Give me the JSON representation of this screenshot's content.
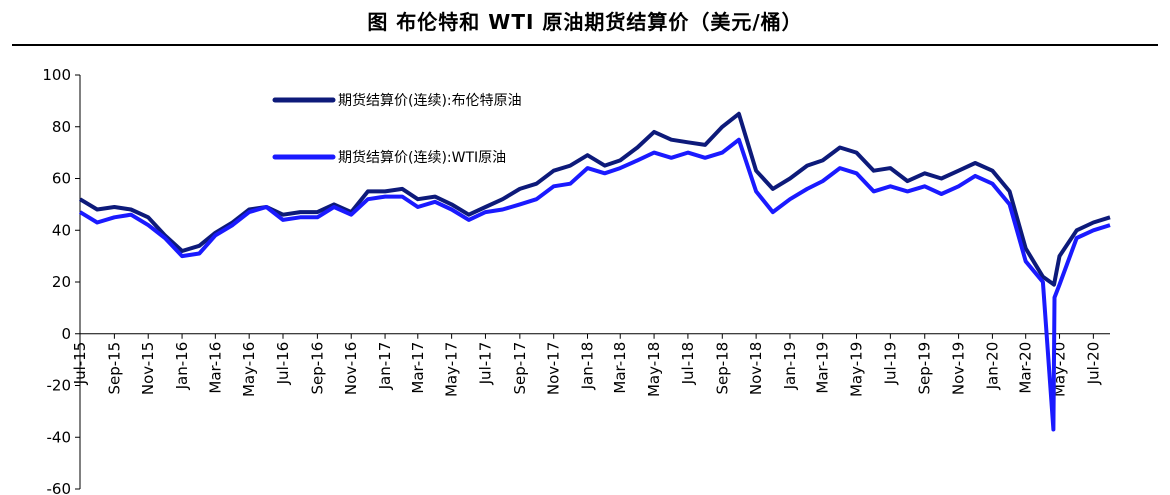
{
  "title": "图  布伦特和 WTI 原油期货结算价（美元/桶）",
  "chart_data": {
    "type": "line",
    "ylim": [
      -60,
      100
    ],
    "yticks": [
      100,
      80,
      60,
      40,
      20,
      0,
      -20,
      -40,
      -60
    ],
    "xlim": [
      "2015-07-01",
      "2020-07-31"
    ],
    "x_tick_labels": [
      "Jul-15",
      "Sep-15",
      "Nov-15",
      "Jan-16",
      "Mar-16",
      "May-16",
      "Jul-16",
      "Sep-16",
      "Nov-16",
      "Jan-17",
      "Mar-17",
      "May-17",
      "Jul-17",
      "Sep-17",
      "Nov-17",
      "Jan-18",
      "Mar-18",
      "May-18",
      "Jul-18",
      "Sep-18",
      "Nov-18",
      "Jan-19",
      "Mar-19",
      "May-19",
      "Jul-19",
      "Sep-19",
      "Nov-19",
      "Jan-20",
      "Mar-20",
      "May-20",
      "Jul-20"
    ],
    "legend_position": "top-left",
    "series": [
      {
        "name": "期货结算价(连续):布伦特原油",
        "color": "#0d1a7a",
        "points": [
          [
            "2015-07-01",
            52
          ],
          [
            "2015-08-01",
            48
          ],
          [
            "2015-09-01",
            49
          ],
          [
            "2015-10-01",
            48
          ],
          [
            "2015-11-01",
            45
          ],
          [
            "2015-12-01",
            38
          ],
          [
            "2016-01-01",
            32
          ],
          [
            "2016-02-01",
            34
          ],
          [
            "2016-03-01",
            39
          ],
          [
            "2016-04-01",
            43
          ],
          [
            "2016-05-01",
            48
          ],
          [
            "2016-06-01",
            49
          ],
          [
            "2016-07-01",
            46
          ],
          [
            "2016-08-01",
            47
          ],
          [
            "2016-09-01",
            47
          ],
          [
            "2016-10-01",
            50
          ],
          [
            "2016-11-01",
            47
          ],
          [
            "2016-12-01",
            55
          ],
          [
            "2017-01-01",
            55
          ],
          [
            "2017-02-01",
            56
          ],
          [
            "2017-03-01",
            52
          ],
          [
            "2017-04-01",
            53
          ],
          [
            "2017-05-01",
            50
          ],
          [
            "2017-06-01",
            46
          ],
          [
            "2017-07-01",
            49
          ],
          [
            "2017-08-01",
            52
          ],
          [
            "2017-09-01",
            56
          ],
          [
            "2017-10-01",
            58
          ],
          [
            "2017-11-01",
            63
          ],
          [
            "2017-12-01",
            65
          ],
          [
            "2018-01-01",
            69
          ],
          [
            "2018-02-01",
            65
          ],
          [
            "2018-03-01",
            67
          ],
          [
            "2018-04-01",
            72
          ],
          [
            "2018-05-01",
            78
          ],
          [
            "2018-06-01",
            75
          ],
          [
            "2018-07-01",
            74
          ],
          [
            "2018-08-01",
            73
          ],
          [
            "2018-09-01",
            80
          ],
          [
            "2018-10-01",
            85
          ],
          [
            "2018-11-01",
            63
          ],
          [
            "2018-12-01",
            56
          ],
          [
            "2019-01-01",
            60
          ],
          [
            "2019-02-01",
            65
          ],
          [
            "2019-03-01",
            67
          ],
          [
            "2019-04-01",
            72
          ],
          [
            "2019-05-01",
            70
          ],
          [
            "2019-06-01",
            63
          ],
          [
            "2019-07-01",
            64
          ],
          [
            "2019-08-01",
            59
          ],
          [
            "2019-09-01",
            62
          ],
          [
            "2019-10-01",
            60
          ],
          [
            "2019-11-01",
            63
          ],
          [
            "2019-12-01",
            66
          ],
          [
            "2020-01-01",
            63
          ],
          [
            "2020-02-01",
            55
          ],
          [
            "2020-03-01",
            33
          ],
          [
            "2020-04-01",
            22
          ],
          [
            "2020-04-21",
            19
          ],
          [
            "2020-05-01",
            30
          ],
          [
            "2020-06-01",
            40
          ],
          [
            "2020-07-01",
            43
          ],
          [
            "2020-07-31",
            45
          ]
        ]
      },
      {
        "name": "期货结算价(连续):WTI原油",
        "color": "#1a1aff",
        "points": [
          [
            "2015-07-01",
            47
          ],
          [
            "2015-08-01",
            43
          ],
          [
            "2015-09-01",
            45
          ],
          [
            "2015-10-01",
            46
          ],
          [
            "2015-11-01",
            42
          ],
          [
            "2015-12-01",
            37
          ],
          [
            "2016-01-01",
            30
          ],
          [
            "2016-02-01",
            31
          ],
          [
            "2016-03-01",
            38
          ],
          [
            "2016-04-01",
            42
          ],
          [
            "2016-05-01",
            47
          ],
          [
            "2016-06-01",
            49
          ],
          [
            "2016-07-01",
            44
          ],
          [
            "2016-08-01",
            45
          ],
          [
            "2016-09-01",
            45
          ],
          [
            "2016-10-01",
            49
          ],
          [
            "2016-11-01",
            46
          ],
          [
            "2016-12-01",
            52
          ],
          [
            "2017-01-01",
            53
          ],
          [
            "2017-02-01",
            53
          ],
          [
            "2017-03-01",
            49
          ],
          [
            "2017-04-01",
            51
          ],
          [
            "2017-05-01",
            48
          ],
          [
            "2017-06-01",
            44
          ],
          [
            "2017-07-01",
            47
          ],
          [
            "2017-08-01",
            48
          ],
          [
            "2017-09-01",
            50
          ],
          [
            "2017-10-01",
            52
          ],
          [
            "2017-11-01",
            57
          ],
          [
            "2017-12-01",
            58
          ],
          [
            "2018-01-01",
            64
          ],
          [
            "2018-02-01",
            62
          ],
          [
            "2018-03-01",
            64
          ],
          [
            "2018-04-01",
            67
          ],
          [
            "2018-05-01",
            70
          ],
          [
            "2018-06-01",
            68
          ],
          [
            "2018-07-01",
            70
          ],
          [
            "2018-08-01",
            68
          ],
          [
            "2018-09-01",
            70
          ],
          [
            "2018-10-01",
            75
          ],
          [
            "2018-11-01",
            55
          ],
          [
            "2018-12-01",
            47
          ],
          [
            "2019-01-01",
            52
          ],
          [
            "2019-02-01",
            56
          ],
          [
            "2019-03-01",
            59
          ],
          [
            "2019-04-01",
            64
          ],
          [
            "2019-05-01",
            62
          ],
          [
            "2019-06-01",
            55
          ],
          [
            "2019-07-01",
            57
          ],
          [
            "2019-08-01",
            55
          ],
          [
            "2019-09-01",
            57
          ],
          [
            "2019-10-01",
            54
          ],
          [
            "2019-11-01",
            57
          ],
          [
            "2019-12-01",
            61
          ],
          [
            "2020-01-01",
            58
          ],
          [
            "2020-02-01",
            50
          ],
          [
            "2020-03-01",
            28
          ],
          [
            "2020-04-01",
            20
          ],
          [
            "2020-04-20",
            -37
          ],
          [
            "2020-04-22",
            14
          ],
          [
            "2020-05-01",
            19
          ],
          [
            "2020-06-01",
            37
          ],
          [
            "2020-07-01",
            40
          ],
          [
            "2020-07-31",
            42
          ]
        ]
      }
    ]
  }
}
